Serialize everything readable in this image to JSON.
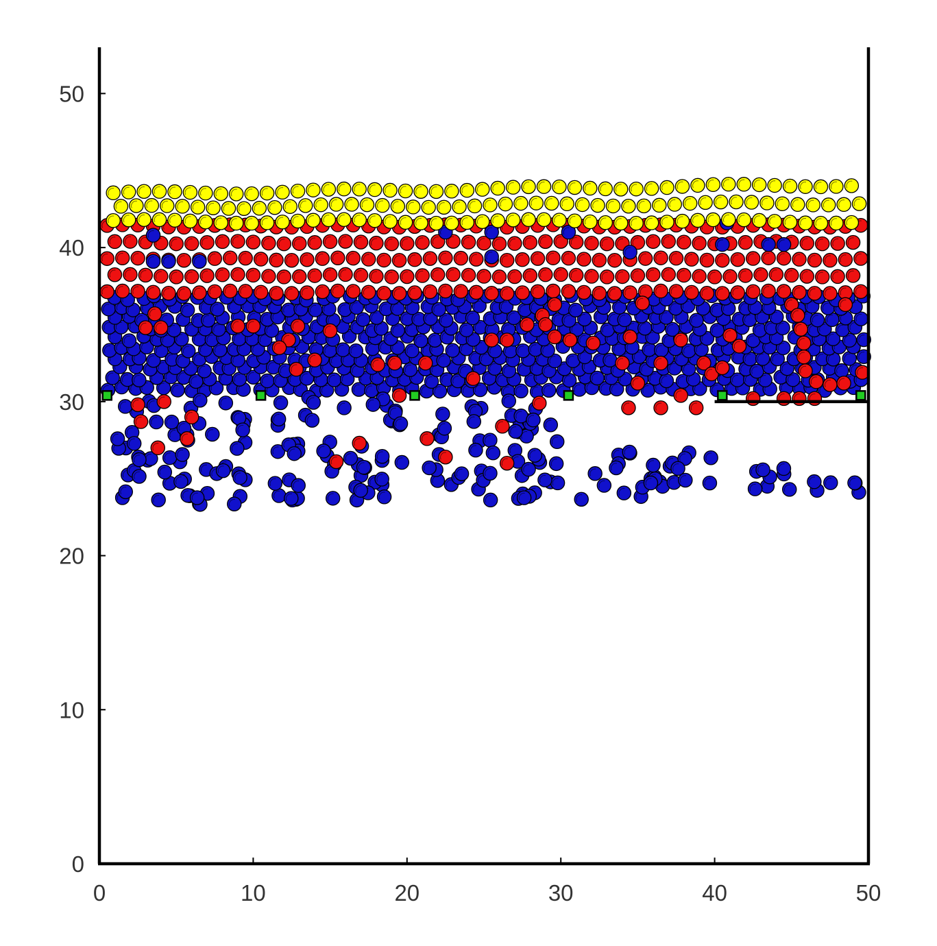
{
  "chart_data": {
    "type": "scatter",
    "title": "",
    "xlabel": "",
    "ylabel": "",
    "xlim": [
      0,
      50
    ],
    "ylim": [
      0,
      53
    ],
    "x_ticks": [
      "0",
      "10",
      "20",
      "30",
      "40",
      "50"
    ],
    "y_ticks": [
      "0",
      "10",
      "20",
      "30",
      "40",
      "50"
    ],
    "grid": false,
    "legend": "none",
    "particle_radius": 0.45,
    "colors": {
      "top_layer": "#ffff00",
      "middle_layer": "#ee1111",
      "bulk": "#1111cc",
      "anchors": "#22cc22",
      "outline": "#000000"
    },
    "walls": {
      "left_x": 0,
      "right_x": 50,
      "floor_y": 0,
      "shelf": {
        "x_from": 40,
        "x_to": 50,
        "y": 30
      }
    },
    "series": [
      {
        "color": "#22cc22",
        "shape": "square",
        "points": [
          [
            0.5,
            30.4
          ],
          [
            10.5,
            30.4
          ],
          [
            20.5,
            30.4
          ],
          [
            30.5,
            30.4
          ],
          [
            40.5,
            30.4
          ],
          [
            49.5,
            30.4
          ]
        ]
      },
      {
        "color": "#ffff00",
        "band": {
          "x": [
            0.9,
            49.5
          ],
          "y_start": 41.7,
          "y_end_left": 43.5,
          "y_end_right": 44.1,
          "rows": 3
        }
      },
      {
        "color": "#ee1111",
        "band": {
          "x": [
            0.5,
            49.6
          ],
          "y_start": 37.1,
          "y_end": 41.4,
          "rows": 5
        }
      },
      {
        "color": "#1111cc",
        "points_in_red_band": [
          [
            3.5,
            40.8
          ],
          [
            3.5,
            39.1
          ],
          [
            4.5,
            39.1
          ],
          [
            6.5,
            39.1
          ],
          [
            22.5,
            41.0
          ],
          [
            25.5,
            39.4
          ],
          [
            25.5,
            41.0
          ],
          [
            30.5,
            41.0
          ],
          [
            34.5,
            39.7
          ],
          [
            40.5,
            40.2
          ],
          [
            40.8,
            41.6
          ],
          [
            43.5,
            40.2
          ],
          [
            44.5,
            40.2
          ]
        ],
        "band": {
          "x": [
            0.5,
            49.6
          ],
          "y_start": 30.8,
          "y_end": 37.0
        },
        "clusters": [
          {
            "x": [
              1.0,
              9.8
            ],
            "y": [
              23.3,
              30.3
            ]
          },
          {
            "x": [
              11.3,
              19.8
            ],
            "y": [
              23.5,
              30.3
            ]
          },
          {
            "x": [
              21.3,
              29.8
            ],
            "y": [
              23.6,
              30.3
            ]
          },
          {
            "x": [
              31.3,
              39.8
            ],
            "y": [
              23.6,
              27.0
            ]
          },
          {
            "x": [
              41.3,
              49.5
            ],
            "y": [
              24.1,
              25.9
            ]
          }
        ]
      },
      {
        "color": "#ee1111",
        "points": [
          [
            3.6,
            35.7
          ],
          [
            3.0,
            34.8
          ],
          [
            4.0,
            34.8
          ],
          [
            9.0,
            34.9
          ],
          [
            10.0,
            34.9
          ],
          [
            12.9,
            34.9
          ],
          [
            12.3,
            34.0
          ],
          [
            11.7,
            33.5
          ],
          [
            12.8,
            32.1
          ],
          [
            14.0,
            32.7
          ],
          [
            15.0,
            34.6
          ],
          [
            18.1,
            32.4
          ],
          [
            19.2,
            32.5
          ],
          [
            19.5,
            30.4
          ],
          [
            21.2,
            32.5
          ],
          [
            24.3,
            31.5
          ],
          [
            25.5,
            34.0
          ],
          [
            26.5,
            34.0
          ],
          [
            27.8,
            35.0
          ],
          [
            28.8,
            35.6
          ],
          [
            29.6,
            36.3
          ],
          [
            29.0,
            35.0
          ],
          [
            29.6,
            34.2
          ],
          [
            30.6,
            34.0
          ],
          [
            32.1,
            33.8
          ],
          [
            28.6,
            29.9
          ],
          [
            34.5,
            34.2
          ],
          [
            35.3,
            36.4
          ],
          [
            36.5,
            32.5
          ],
          [
            34.0,
            32.5
          ],
          [
            35.0,
            31.2
          ],
          [
            37.8,
            34.0
          ],
          [
            37.8,
            30.4
          ],
          [
            36.5,
            29.6
          ],
          [
            34.4,
            29.6
          ],
          [
            38.8,
            29.6
          ],
          [
            39.3,
            32.5
          ],
          [
            39.8,
            31.8
          ],
          [
            40.5,
            32.2
          ],
          [
            41.0,
            34.3
          ],
          [
            41.6,
            33.6
          ],
          [
            45.0,
            36.3
          ],
          [
            45.4,
            35.6
          ],
          [
            45.6,
            34.7
          ],
          [
            45.8,
            33.8
          ],
          [
            45.8,
            32.9
          ],
          [
            45.9,
            32.0
          ],
          [
            46.6,
            31.3
          ],
          [
            47.5,
            31.1
          ],
          [
            48.4,
            31.2
          ],
          [
            49.6,
            31.9
          ],
          [
            48.5,
            36.3
          ],
          [
            42.5,
            30.2
          ],
          [
            44.5,
            30.2
          ],
          [
            45.5,
            30.2
          ],
          [
            46.5,
            30.2
          ],
          [
            2.5,
            29.8
          ],
          [
            2.7,
            28.7
          ],
          [
            4.2,
            30.0
          ],
          [
            6.0,
            29.0
          ],
          [
            5.7,
            27.6
          ],
          [
            3.8,
            27.0
          ],
          [
            16.9,
            27.3
          ],
          [
            21.3,
            27.6
          ],
          [
            15.4,
            26.1
          ],
          [
            22.5,
            26.4
          ],
          [
            26.2,
            28.4
          ],
          [
            26.5,
            26.0
          ]
        ]
      }
    ]
  }
}
